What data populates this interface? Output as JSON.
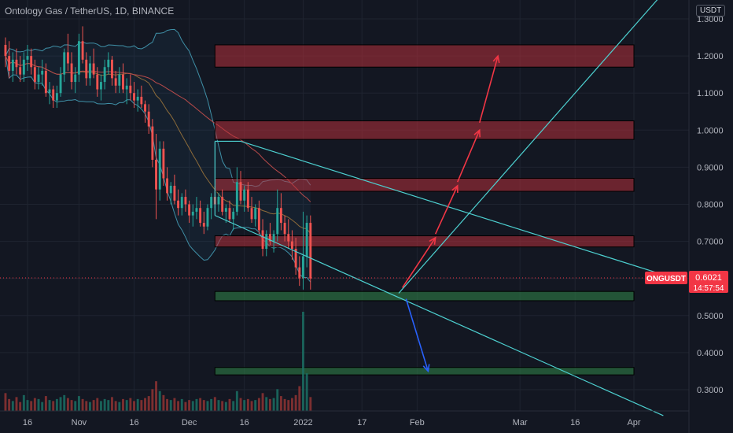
{
  "header": {
    "title": "Ontology Gas / TetherUS, 1D, BINANCE"
  },
  "chart_data": {
    "type": "candlestick",
    "symbol": "ONGUSDT",
    "quote_unit": "USDT",
    "price_label": {
      "symbol": "ONGUSDT",
      "price": "0.6021",
      "countdown": "14:57:54"
    },
    "y_ticks": [
      "1.3000",
      "1.2000",
      "1.1000",
      "1.0000",
      "0.9000",
      "0.8000",
      "0.7000",
      "0.6000",
      "0.5000",
      "0.4000",
      "0.3000"
    ],
    "y_tick_values": [
      1.3,
      1.2,
      1.1,
      1.0,
      0.9,
      0.8,
      0.7,
      0.6,
      0.5,
      0.4,
      0.3
    ],
    "x_ticks": [
      "16",
      "Nov",
      "16",
      "Dec",
      "16",
      "2022",
      "17",
      "Feb",
      "Mar",
      "16",
      "Apr"
    ],
    "ylim": [
      0.24,
      1.34
    ],
    "xlim_days": [
      0,
      166
    ],
    "x_tick_days": [
      0,
      14,
      29,
      44,
      59,
      75,
      91,
      106,
      134,
      149,
      165
    ],
    "candle_start_day": -6,
    "ohlc": [
      [
        1.23,
        1.25,
        1.17,
        1.2
      ],
      [
        1.2,
        1.24,
        1.14,
        1.16
      ],
      [
        1.16,
        1.21,
        1.13,
        1.19
      ],
      [
        1.19,
        1.22,
        1.15,
        1.17
      ],
      [
        1.17,
        1.2,
        1.13,
        1.15
      ],
      [
        1.15,
        1.21,
        1.13,
        1.19
      ],
      [
        1.19,
        1.23,
        1.16,
        1.2
      ],
      [
        1.2,
        1.22,
        1.15,
        1.17
      ],
      [
        1.17,
        1.19,
        1.11,
        1.13
      ],
      [
        1.13,
        1.17,
        1.11,
        1.15
      ],
      [
        1.15,
        1.19,
        1.12,
        1.16
      ],
      [
        1.16,
        1.18,
        1.09,
        1.1
      ],
      [
        1.1,
        1.13,
        1.07,
        1.11
      ],
      [
        1.11,
        1.12,
        1.06,
        1.08
      ],
      [
        1.08,
        1.12,
        1.06,
        1.1
      ],
      [
        1.1,
        1.17,
        1.09,
        1.15
      ],
      [
        1.15,
        1.22,
        1.13,
        1.21
      ],
      [
        1.21,
        1.26,
        1.16,
        1.18
      ],
      [
        1.18,
        1.21,
        1.11,
        1.13
      ],
      [
        1.13,
        1.17,
        1.1,
        1.15
      ],
      [
        1.15,
        1.26,
        1.13,
        1.24
      ],
      [
        1.24,
        1.28,
        1.18,
        1.19
      ],
      [
        1.19,
        1.21,
        1.12,
        1.14
      ],
      [
        1.14,
        1.2,
        1.12,
        1.18
      ],
      [
        1.18,
        1.22,
        1.14,
        1.15
      ],
      [
        1.15,
        1.17,
        1.09,
        1.11
      ],
      [
        1.11,
        1.15,
        1.08,
        1.13
      ],
      [
        1.13,
        1.19,
        1.11,
        1.17
      ],
      [
        1.17,
        1.21,
        1.15,
        1.19
      ],
      [
        1.19,
        1.2,
        1.12,
        1.14
      ],
      [
        1.14,
        1.16,
        1.1,
        1.12
      ],
      [
        1.12,
        1.17,
        1.1,
        1.15
      ],
      [
        1.15,
        1.18,
        1.1,
        1.11
      ],
      [
        1.11,
        1.14,
        1.07,
        1.12
      ],
      [
        1.12,
        1.15,
        1.08,
        1.1
      ],
      [
        1.1,
        1.13,
        1.06,
        1.08
      ],
      [
        1.08,
        1.11,
        1.05,
        1.09
      ],
      [
        1.09,
        1.12,
        1.06,
        1.07
      ],
      [
        1.07,
        1.08,
        1.02,
        1.05
      ],
      [
        1.05,
        1.07,
        0.99,
        1.01
      ],
      [
        1.01,
        1.03,
        0.9,
        0.92
      ],
      [
        0.92,
        0.99,
        0.76,
        0.84
      ],
      [
        0.84,
        0.97,
        0.81,
        0.95
      ],
      [
        0.95,
        0.97,
        0.85,
        0.87
      ],
      [
        0.87,
        0.9,
        0.81,
        0.83
      ],
      [
        0.83,
        0.86,
        0.8,
        0.85
      ],
      [
        0.85,
        0.88,
        0.8,
        0.81
      ],
      [
        0.81,
        0.84,
        0.77,
        0.79
      ],
      [
        0.79,
        0.83,
        0.77,
        0.82
      ],
      [
        0.82,
        0.84,
        0.78,
        0.8
      ],
      [
        0.8,
        0.81,
        0.75,
        0.77
      ],
      [
        0.77,
        0.8,
        0.74,
        0.78
      ],
      [
        0.78,
        0.82,
        0.76,
        0.79
      ],
      [
        0.79,
        0.81,
        0.74,
        0.75
      ],
      [
        0.75,
        0.78,
        0.72,
        0.74
      ],
      [
        0.74,
        0.8,
        0.73,
        0.79
      ],
      [
        0.79,
        0.83,
        0.76,
        0.82
      ],
      [
        0.82,
        0.85,
        0.79,
        0.8
      ],
      [
        0.8,
        0.83,
        0.78,
        0.82
      ],
      [
        0.82,
        0.84,
        0.77,
        0.78
      ],
      [
        0.78,
        0.8,
        0.75,
        0.79
      ],
      [
        0.79,
        0.81,
        0.75,
        0.76
      ],
      [
        0.76,
        0.79,
        0.73,
        0.78
      ],
      [
        0.78,
        0.9,
        0.77,
        0.86
      ],
      [
        0.86,
        0.89,
        0.8,
        0.81
      ],
      [
        0.81,
        0.85,
        0.78,
        0.84
      ],
      [
        0.84,
        0.86,
        0.78,
        0.79
      ],
      [
        0.79,
        0.82,
        0.75,
        0.76
      ],
      [
        0.76,
        0.8,
        0.74,
        0.79
      ],
      [
        0.79,
        0.81,
        0.72,
        0.73
      ],
      [
        0.73,
        0.76,
        0.66,
        0.68
      ],
      [
        0.68,
        0.73,
        0.66,
        0.72
      ],
      [
        0.72,
        0.75,
        0.69,
        0.7
      ],
      [
        0.7,
        0.73,
        0.67,
        0.72
      ],
      [
        0.72,
        0.84,
        0.7,
        0.79
      ],
      [
        0.79,
        0.83,
        0.73,
        0.75
      ],
      [
        0.75,
        0.77,
        0.7,
        0.72
      ],
      [
        0.72,
        0.76,
        0.68,
        0.7
      ],
      [
        0.7,
        0.73,
        0.65,
        0.68
      ],
      [
        0.68,
        0.71,
        0.61,
        0.63
      ],
      [
        0.63,
        0.66,
        0.58,
        0.6
      ],
      [
        0.6,
        0.78,
        0.57,
        0.66
      ],
      [
        0.66,
        0.77,
        0.63,
        0.75
      ],
      [
        0.75,
        0.77,
        0.57,
        0.6
      ]
    ],
    "volume_max_units": 1.0,
    "volume": [
      0.18,
      0.12,
      0.1,
      0.14,
      0.09,
      0.16,
      0.11,
      0.1,
      0.13,
      0.12,
      0.09,
      0.15,
      0.11,
      0.1,
      0.12,
      0.14,
      0.16,
      0.13,
      0.11,
      0.1,
      0.15,
      0.12,
      0.1,
      0.09,
      0.11,
      0.13,
      0.1,
      0.12,
      0.11,
      0.14,
      0.1,
      0.09,
      0.12,
      0.11,
      0.13,
      0.1,
      0.12,
      0.11,
      0.13,
      0.15,
      0.22,
      0.3,
      0.2,
      0.16,
      0.12,
      0.11,
      0.13,
      0.1,
      0.12,
      0.09,
      0.11,
      0.1,
      0.12,
      0.13,
      0.11,
      0.1,
      0.12,
      0.14,
      0.11,
      0.1,
      0.09,
      0.12,
      0.1,
      0.2,
      0.13,
      0.11,
      0.12,
      0.1,
      0.11,
      0.13,
      0.18,
      0.14,
      0.12,
      0.13,
      0.22,
      0.15,
      0.12,
      0.11,
      0.13,
      0.16,
      0.25,
      1.0,
      0.38,
      0.14
    ],
    "resistance_zones": [
      [
        1.17,
        1.23
      ],
      [
        0.975,
        1.025
      ],
      [
        0.835,
        0.87
      ],
      [
        0.685,
        0.715
      ]
    ],
    "support_zones": [
      [
        0.54,
        0.565
      ],
      [
        0.34,
        0.36
      ]
    ],
    "zone_x_days": [
      51,
      165
    ],
    "trendlines": [
      {
        "from": [
          58,
          0.97
        ],
        "to": [
          173,
          0.61
        ],
        "color": "#4dd0d0"
      },
      {
        "from": [
          51,
          0.77
        ],
        "to": [
          173,
          0.23
        ],
        "color": "#4dd0d0"
      },
      {
        "from": [
          101,
          0.56
        ],
        "to": [
          173,
          1.37
        ],
        "color": "#4dd0d0"
      },
      {
        "from": [
          51,
          0.97
        ],
        "to": [
          58,
          0.97
        ],
        "color": "#4dd0d0"
      },
      {
        "from": [
          51,
          0.77
        ],
        "to": [
          51,
          0.97
        ],
        "color": "#4dd0d0"
      }
    ],
    "arrows_up": [
      {
        "from": [
          102,
          0.575
        ],
        "to": [
          111,
          0.71
        ]
      },
      {
        "from": [
          111,
          0.72
        ],
        "to": [
          117,
          0.85
        ]
      },
      {
        "from": [
          117,
          0.86
        ],
        "to": [
          123,
          1.0
        ]
      },
      {
        "from": [
          123,
          1.02
        ],
        "to": [
          128,
          1.2
        ]
      }
    ],
    "arrows_down": [
      {
        "from": [
          103,
          0.545
        ],
        "to": [
          109,
          0.35
        ]
      }
    ]
  }
}
